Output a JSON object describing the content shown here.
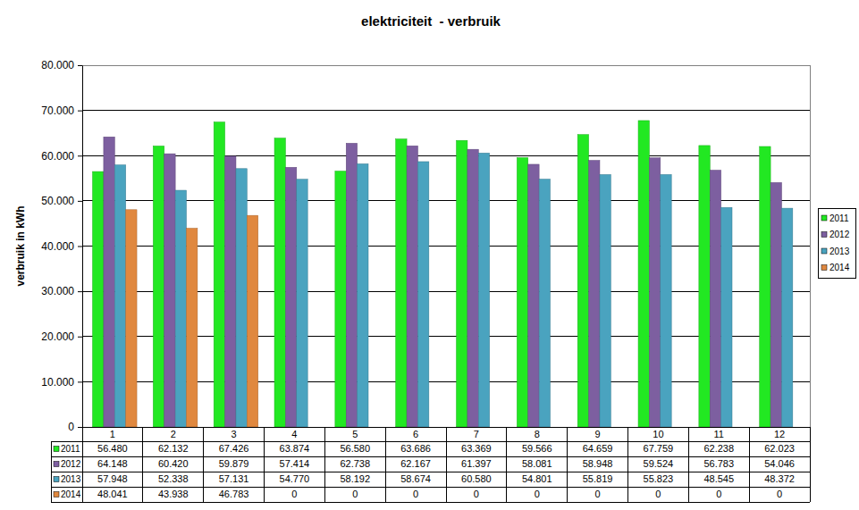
{
  "chart_data": {
    "type": "bar",
    "title": "elektriciteit  - verbruik",
    "y_label": "verbruik in kWh",
    "categories": [
      "1",
      "2",
      "3",
      "4",
      "5",
      "6",
      "7",
      "8",
      "9",
      "10",
      "11",
      "12"
    ],
    "series": [
      {
        "name": "2011",
        "color": "#22e822",
        "values": [
          56480,
          62132,
          67426,
          63874,
          56580,
          63686,
          63369,
          59566,
          64659,
          67759,
          62238,
          62023
        ],
        "value_labels": [
          "56.480",
          "62.132",
          "67.426",
          "63.874",
          "56.580",
          "63.686",
          "63.369",
          "59.566",
          "64.659",
          "67.759",
          "62.238",
          "62.023"
        ]
      },
      {
        "name": "2012",
        "color": "#7d5fa0",
        "values": [
          64148,
          60420,
          59879,
          57414,
          62738,
          62167,
          61397,
          58081,
          58948,
          59524,
          56783,
          54046
        ],
        "value_labels": [
          "64.148",
          "60.420",
          "59.879",
          "57.414",
          "62.738",
          "62.167",
          "61.397",
          "58.081",
          "58.948",
          "59.524",
          "56.783",
          "54.046"
        ]
      },
      {
        "name": "2013",
        "color": "#4aa3bf",
        "values": [
          57948,
          52338,
          57131,
          54770,
          58192,
          58674,
          60580,
          54801,
          55819,
          55823,
          48545,
          48372
        ],
        "value_labels": [
          "57.948",
          "52.338",
          "57.131",
          "54.770",
          "58.192",
          "58.674",
          "60.580",
          "54.801",
          "55.819",
          "55.823",
          "48.545",
          "48.372"
        ]
      },
      {
        "name": "2014",
        "color": "#e0883f",
        "values": [
          48041,
          43938,
          46783,
          0,
          0,
          0,
          0,
          0,
          0,
          0,
          0,
          0
        ],
        "value_labels": [
          "48.041",
          "43.938",
          "46.783",
          "0",
          "0",
          "0",
          "0",
          "0",
          "0",
          "0",
          "0",
          "0"
        ]
      }
    ],
    "ylim": [
      0,
      80000
    ],
    "yticks": [
      0,
      {
        "value": 10000,
        "label": "10.000"
      },
      {
        "value": 20000,
        "label": "20.000"
      },
      {
        "value": 30000,
        "label": "30.000"
      },
      {
        "value": 40000,
        "label": "40.000"
      },
      {
        "value": 50000,
        "label": "50.000"
      },
      {
        "value": 60000,
        "label": "60.000"
      },
      {
        "value": 70000,
        "label": "70.000"
      },
      {
        "value": 80000,
        "label": "80.000"
      }
    ],
    "grid": true,
    "legend": "right"
  }
}
